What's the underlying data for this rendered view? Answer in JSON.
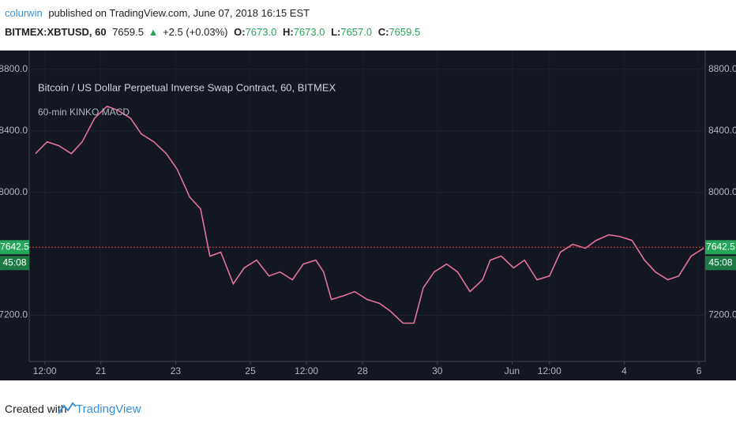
{
  "header": {
    "author": "colurwin",
    "published": "published on TradingView.com, June 07, 2018 16:15 EST",
    "symbol": "BITMEX:XBTUSD, 60",
    "last": "7659.5",
    "arrow": "▲",
    "change": "+2.5 (+0.03%)",
    "ohlc": [
      {
        "label": "O:",
        "value": "7673.0"
      },
      {
        "label": "H:",
        "value": "7673.0"
      },
      {
        "label": "L:",
        "value": "7657.0"
      },
      {
        "label": "C:",
        "value": "7659.5"
      }
    ]
  },
  "chart_data": {
    "type": "line",
    "title": "Bitcoin / US Dollar Perpetual Inverse Swap Contract, 60, BITMEX",
    "subtitle": "60-min KINKO MACD",
    "x": [
      6,
      13.5,
      21,
      29,
      36,
      44,
      52,
      59,
      67,
      74,
      82,
      90,
      97,
      105,
      112,
      118,
      125,
      133,
      140,
      148,
      156,
      163,
      171,
      178,
      186,
      191,
      196,
      204,
      211,
      219,
      227,
      234,
      242,
      249,
      255,
      262,
      270,
      277,
      285,
      293,
      298,
      305,
      313,
      320,
      328,
      336,
      343,
      351,
      359,
      366,
      374,
      381,
      389,
      397,
      404,
      412,
      419,
      427,
      435
    ],
    "series": [
      {
        "name": "XBTUSD",
        "color": "#e57399",
        "values": [
          8251,
          8328,
          8303,
          8251,
          8328,
          8482,
          8559,
          8533,
          8482,
          8379,
          8328,
          8251,
          8149,
          7969,
          7892,
          7585,
          7610,
          7405,
          7508,
          7559,
          7456,
          7482,
          7431,
          7533,
          7559,
          7482,
          7303,
          7328,
          7354,
          7303,
          7277,
          7226,
          7149,
          7149,
          7379,
          7482,
          7533,
          7482,
          7354,
          7431,
          7559,
          7585,
          7508,
          7559,
          7431,
          7456,
          7610,
          7662,
          7636,
          7687,
          7723,
          7713,
          7687,
          7559,
          7482,
          7431,
          7456,
          7585,
          7636
        ]
      }
    ],
    "xlim": [
      2,
      436
    ],
    "xticks": [
      {
        "value": 12,
        "label": "12:00"
      },
      {
        "value": 48,
        "label": "21"
      },
      {
        "value": 96,
        "label": "23"
      },
      {
        "value": 144,
        "label": "25"
      },
      {
        "value": 180,
        "label": "12:00"
      },
      {
        "value": 216,
        "label": "28"
      },
      {
        "value": 264,
        "label": "30"
      },
      {
        "value": 312,
        "label": "Jun"
      },
      {
        "value": 336,
        "label": "12:00"
      },
      {
        "value": 384,
        "label": "4"
      },
      {
        "value": 432,
        "label": "6"
      }
    ],
    "ylim": [
      6900,
      8850
    ],
    "yticks": [
      {
        "value": 7200,
        "label": "7200.0"
      },
      {
        "value": 8000,
        "label": "8000.0"
      },
      {
        "value": 8400,
        "label": "8400.0"
      },
      {
        "value": 8800,
        "label": "8800.0"
      }
    ],
    "grid": true,
    "last_price": 7642.5,
    "countdown": "45:08"
  },
  "footer": {
    "created": "Created with",
    "brand": "TradingView"
  }
}
